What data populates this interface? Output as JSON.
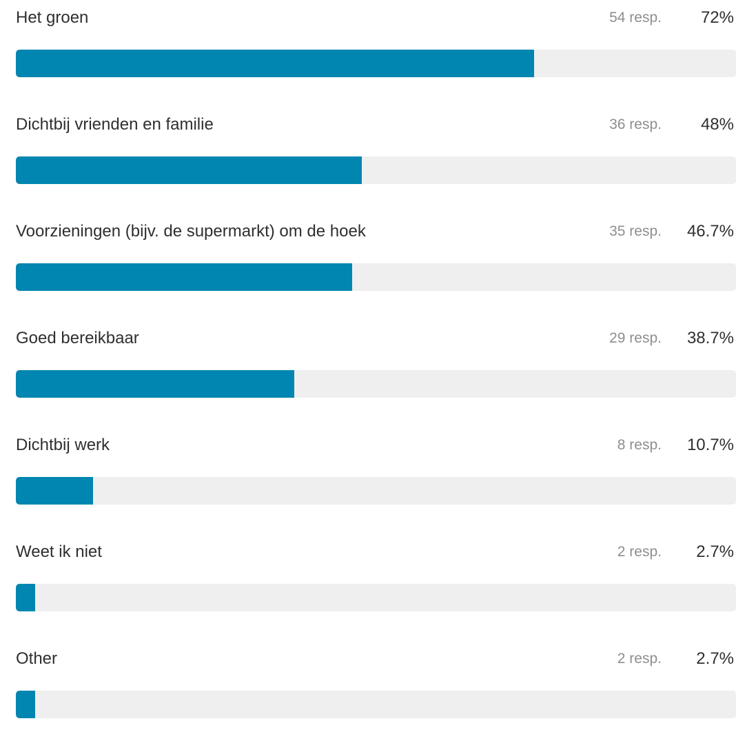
{
  "chart_data": {
    "type": "bar",
    "orientation": "horizontal",
    "bar_color": "#0086b0",
    "track_color": "#efefef",
    "rows": [
      {
        "label": "Het groen",
        "responses": "54 resp.",
        "percent_label": "72%",
        "value": 72
      },
      {
        "label": "Dichtbij vrienden en familie",
        "responses": "36 resp.",
        "percent_label": "48%",
        "value": 48
      },
      {
        "label": "Voorzieningen (bijv. de supermarkt) om de hoek",
        "responses": "35 resp.",
        "percent_label": "46.7%",
        "value": 46.7
      },
      {
        "label": "Goed bereikbaar",
        "responses": "29 resp.",
        "percent_label": "38.7%",
        "value": 38.7
      },
      {
        "label": "Dichtbij werk",
        "responses": "8 resp.",
        "percent_label": "10.7%",
        "value": 10.7
      },
      {
        "label": "Weet ik niet",
        "responses": "2 resp.",
        "percent_label": "2.7%",
        "value": 2.7
      },
      {
        "label": "Other",
        "responses": "2 resp.",
        "percent_label": "2.7%",
        "value": 2.7
      }
    ],
    "xlim": [
      0,
      100
    ]
  }
}
